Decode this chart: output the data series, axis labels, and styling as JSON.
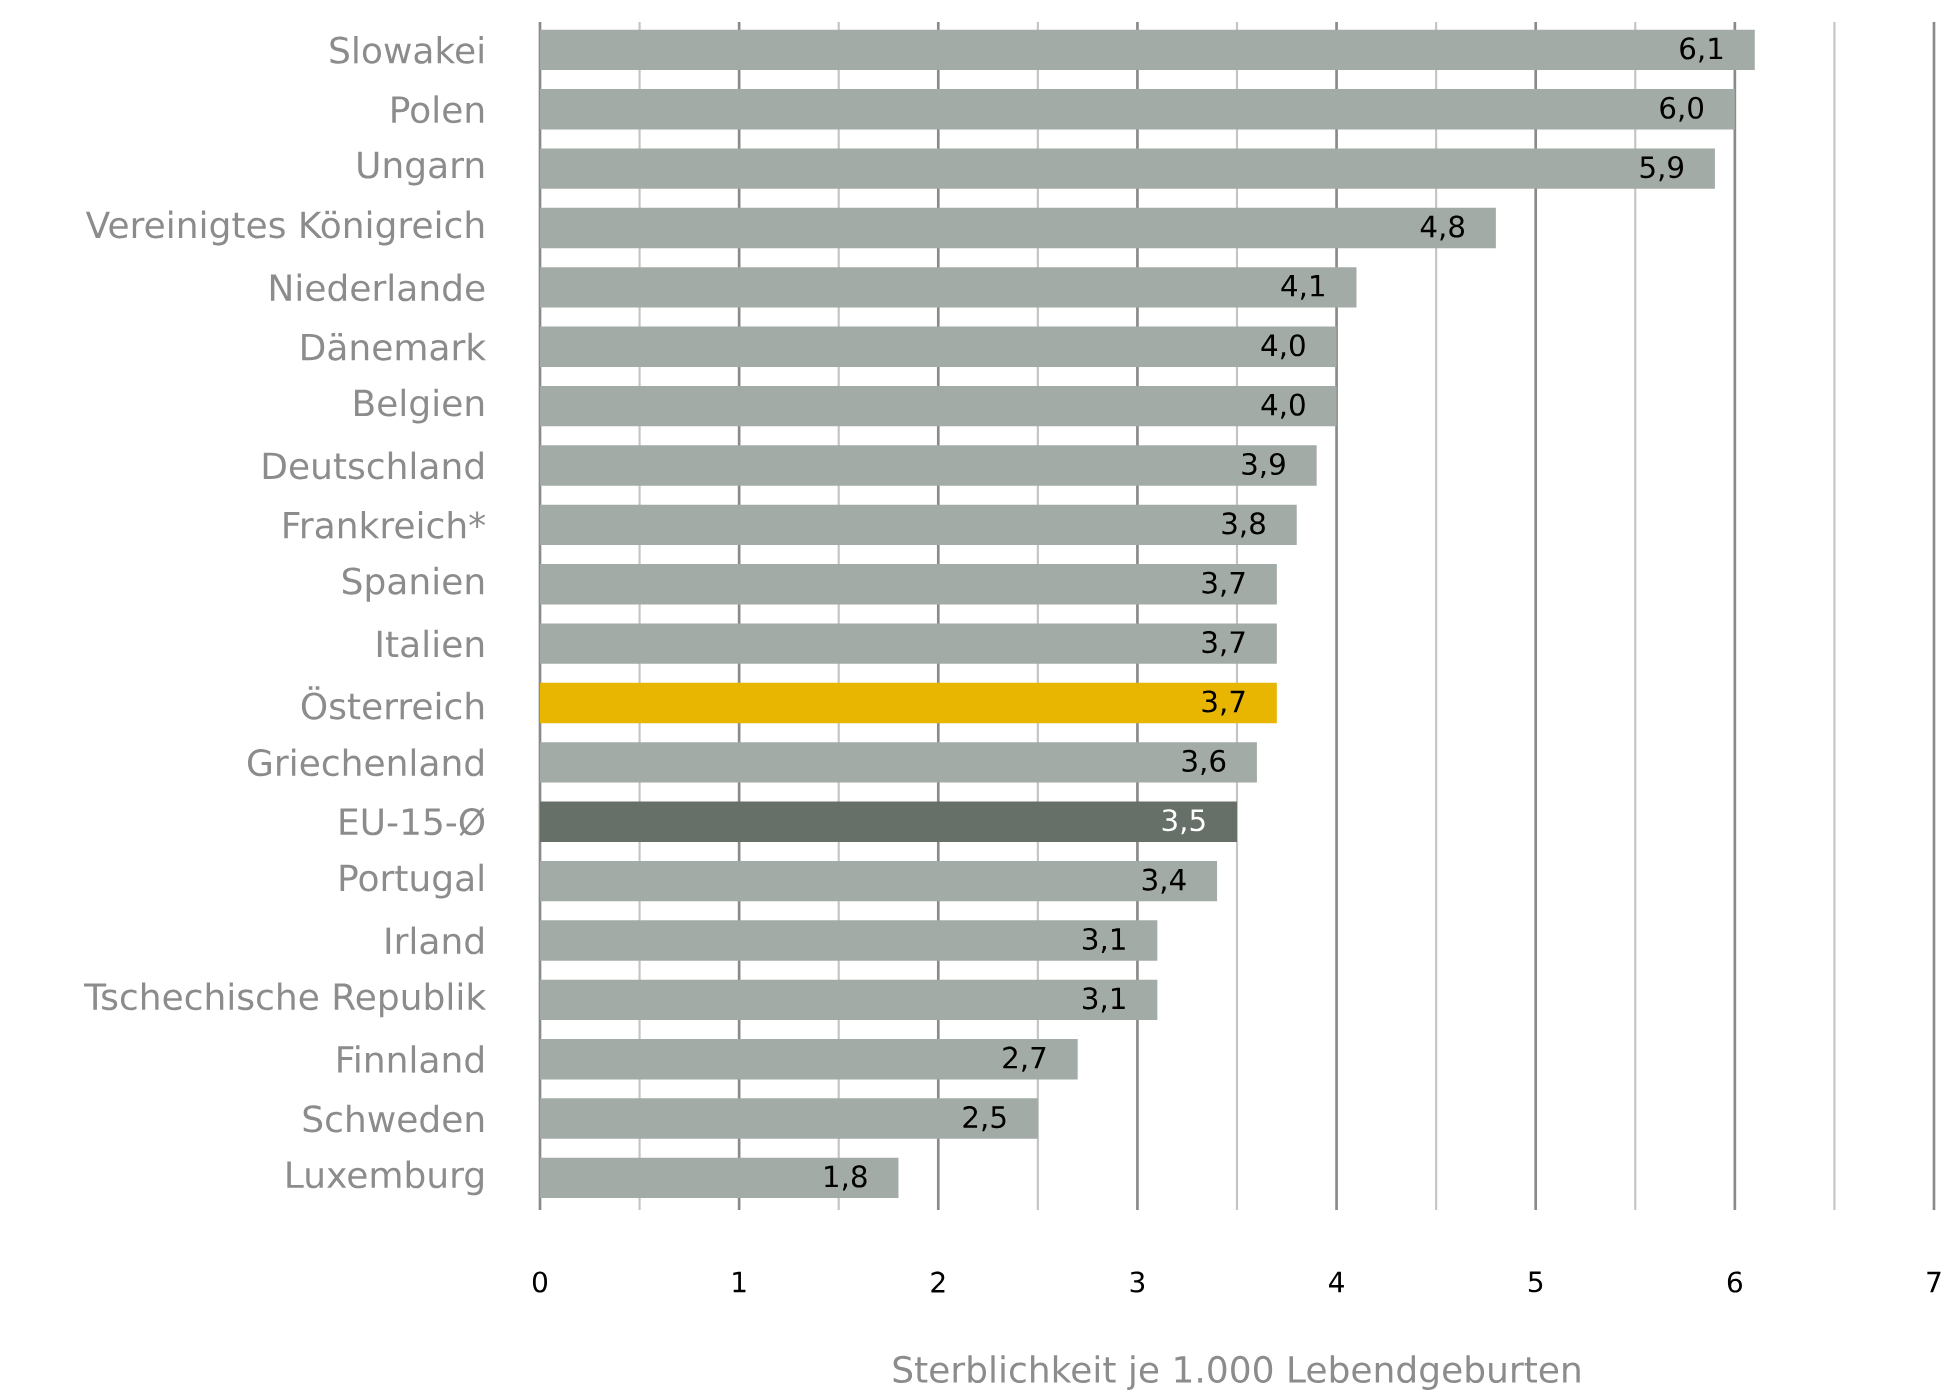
{
  "chart_data": {
    "type": "bar",
    "orientation": "horizontal",
    "categories": [
      "Slowakei",
      "Polen",
      "Ungarn",
      "Vereinigtes Königreich",
      "Niederlande",
      "Dänemark",
      "Belgien",
      "Deutschland",
      "Frankreich*",
      "Spanien",
      "Italien",
      "Österreich",
      "Griechenland",
      "EU-15-Ø",
      "Portugal",
      "Irland",
      "Tschechische Republik",
      "Finnland",
      "Schweden",
      "Luxemburg"
    ],
    "values": [
      6.1,
      6.0,
      5.9,
      4.8,
      4.1,
      4.0,
      4.0,
      3.9,
      3.8,
      3.7,
      3.7,
      3.7,
      3.6,
      3.5,
      3.4,
      3.1,
      3.1,
      2.7,
      2.5,
      1.8
    ],
    "colors": [
      "#a3aba6",
      "#a3aba6",
      "#a3aba6",
      "#a3aba6",
      "#a3aba6",
      "#a3aba6",
      "#a3aba6",
      "#a3aba6",
      "#a3aba6",
      "#a3aba6",
      "#a3aba6",
      "#e8b500",
      "#a3aba6",
      "#667069",
      "#a3aba6",
      "#a3aba6",
      "#a3aba6",
      "#a3aba6",
      "#a3aba6",
      "#a3aba6"
    ],
    "value_labels": [
      "6,1",
      "6,0",
      "5,9",
      "4,8",
      "4,1",
      "4,0",
      "4,0",
      "3,9",
      "3,8",
      "3,7",
      "3,7",
      "3,7",
      "3,6",
      "3,5",
      "3,4",
      "3,1",
      "3,1",
      "2,7",
      "2,5",
      "1,8"
    ],
    "xlabel": "Sterblichkeit je 1.000 Lebendgeburten",
    "xlim": [
      0,
      7
    ],
    "xticks": [
      0,
      {
        "value": 0.5,
        "label": null
      },
      1,
      {
        "value": 1.5,
        "label": null
      },
      2,
      {
        "value": 2.5,
        "label": null
      },
      3,
      {
        "value": 3.5,
        "label": null
      },
      4,
      {
        "value": 4.5,
        "label": null
      },
      5,
      {
        "value": 5.5,
        "label": null
      },
      6,
      {
        "value": 6.5,
        "label": null
      },
      7
    ],
    "grid": "x"
  }
}
